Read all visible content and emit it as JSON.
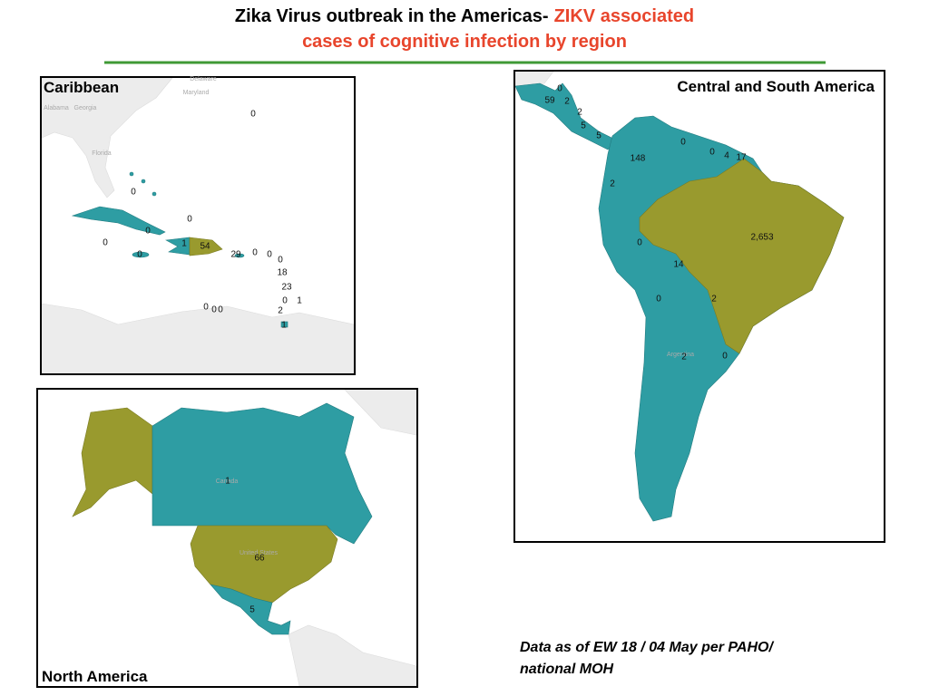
{
  "title": {
    "lead": "Zika Virus outbreak in the Americas-",
    "highlight_1": "ZIKV associated",
    "highlight_2": "cases of cognitive infection by region"
  },
  "panels": [
    {
      "title": "Caribbean",
      "place_names": [
        "Delaware",
        "Maryland",
        "Alabama",
        "Georgia",
        "Florida"
      ],
      "labels": [
        "0",
        "0",
        "0",
        "0",
        "0",
        "0",
        "1",
        "54",
        "29",
        "0",
        "0",
        "0",
        "18",
        "23",
        "0",
        "1",
        "2",
        "1",
        "0",
        "0",
        "0"
      ]
    },
    {
      "title": "Central and South America",
      "place_names": [
        "Argentina"
      ],
      "labels": [
        "0",
        "59",
        "2",
        "2",
        "5",
        "5",
        "0",
        "0",
        "4",
        "17",
        "148",
        "2",
        "2,653",
        "0",
        "14",
        "0",
        "2",
        "2",
        "0"
      ]
    },
    {
      "title": "North America",
      "place_names": [
        "Canada",
        "United States"
      ],
      "labels": [
        "1",
        "66",
        "5"
      ]
    }
  ],
  "footnote": [
    "Data as of EW 18 / 04 May per PAHO/",
    "national MOH"
  ]
}
